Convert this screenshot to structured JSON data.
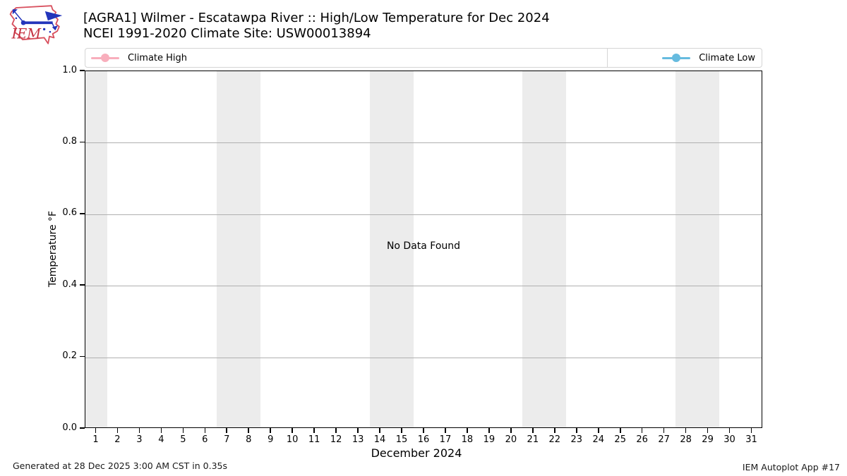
{
  "header": {
    "logo_text": "IEM",
    "title_line1": "[AGRA1] Wilmer - Escatawpa River :: High/Low Temperature for Dec 2024",
    "title_line2": "NCEI 1991-2020 Climate Site: USW00013894"
  },
  "legend": {
    "items": [
      {
        "label": "Climate High",
        "color": "#f8aebc"
      },
      {
        "label": "Climate Low",
        "color": "#66bbdf"
      }
    ]
  },
  "chart_data": {
    "type": "line",
    "title": "[AGRA1] Wilmer - Escatawpa River :: High/Low Temperature for Dec 2024",
    "subtitle": "NCEI 1991-2020 Climate Site: USW00013894",
    "xlabel": "December 2024",
    "ylabel": "Temperature °F",
    "xlim": [
      0.5,
      31.5
    ],
    "ylim": [
      0.0,
      1.0
    ],
    "x_ticks": [
      1,
      2,
      3,
      4,
      5,
      6,
      7,
      8,
      9,
      10,
      11,
      12,
      13,
      14,
      15,
      16,
      17,
      18,
      19,
      20,
      21,
      22,
      23,
      24,
      25,
      26,
      27,
      28,
      29,
      30,
      31
    ],
    "y_ticks": [
      0.0,
      0.2,
      0.4,
      0.6,
      0.8,
      1.0
    ],
    "y_tick_labels": [
      "0.0",
      "0.2",
      "0.4",
      "0.6",
      "0.8",
      "1.0"
    ],
    "grid_values": [
      0.2,
      0.4,
      0.6,
      0.8
    ],
    "grid": true,
    "weekend_bands_days": [
      [
        0.5,
        1.5
      ],
      [
        6.5,
        8.5
      ],
      [
        13.5,
        15.5
      ],
      [
        20.5,
        22.5
      ],
      [
        27.5,
        29.5
      ]
    ],
    "series": [
      {
        "name": "Climate High",
        "values": []
      },
      {
        "name": "Climate Low",
        "values": []
      }
    ],
    "annotation": "No Data Found",
    "legend_position": "top, Climate High left / Climate Low right"
  },
  "footer": {
    "generated": "Generated at 28 Dec 2025 3:00 AM CST in 0.35s",
    "app": "IEM Autoplot App #17"
  },
  "colors": {
    "climate_high": "#f8aebc",
    "climate_low": "#66bbdf",
    "weekend_band": "#ececec",
    "gridline": "#b0b0b0",
    "logo_red": "#d8505e",
    "logo_text_red": "#c32f3f",
    "logo_blue": "#2335bb"
  }
}
